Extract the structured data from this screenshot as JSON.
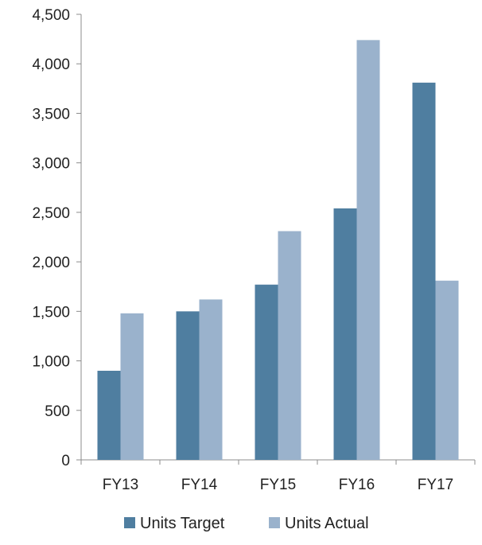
{
  "chart_data": {
    "type": "bar",
    "categories": [
      "FY13",
      "FY14",
      "FY15",
      "FY16",
      "FY17"
    ],
    "series": [
      {
        "name": "Units Target",
        "color": "#4f7ea0",
        "values": [
          900,
          1500,
          1770,
          2540,
          3810
        ]
      },
      {
        "name": "Units Actual",
        "color": "#9ab2cc",
        "values": [
          1480,
          1620,
          2310,
          4240,
          1810
        ]
      }
    ],
    "ylim": [
      0,
      4500
    ],
    "yticks": [
      0,
      500,
      1000,
      1500,
      2000,
      2500,
      3000,
      3500,
      4000,
      4500
    ],
    "ytick_labels": [
      "0",
      "500",
      "1,000",
      "1,500",
      "2,000",
      "2,500",
      "3,000",
      "3,500",
      "4,000",
      "4,500"
    ],
    "grid": false,
    "legend": "bottom"
  }
}
